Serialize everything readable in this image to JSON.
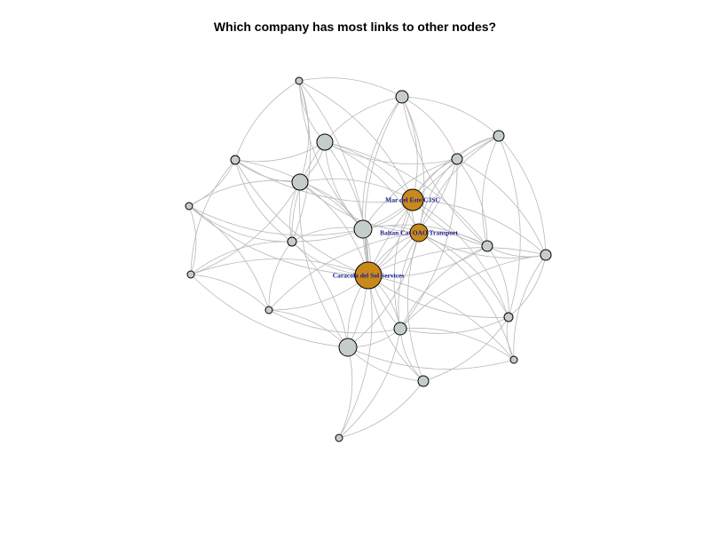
{
  "title": "Which company has most links to other nodes?",
  "colors": {
    "highlight_fill": "#c98a1b",
    "regular_fill": "#c5cdcb",
    "edge": "#b8b8b8",
    "label": "#1a1a8c"
  },
  "labels": {
    "mar_del_este": "Mar del Este CJSC",
    "baltan": "Baltan Cat OAO Transport",
    "caracola": "Caracola del Sol Services"
  }
}
